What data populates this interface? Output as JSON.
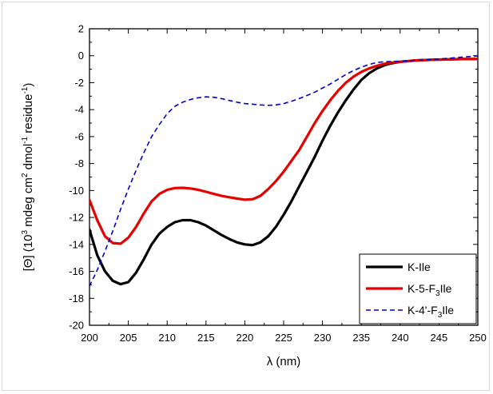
{
  "chart_data": {
    "type": "line",
    "xlabel": "λ (nm)",
    "ylabel_parts": {
      "prefix": "[Θ] (10",
      "exp1": "3",
      "mid": " mdeg cm",
      "exp2": "2",
      "mid2": " dmol",
      "exp3": "-1",
      "mid3": " residue",
      "exp4": "-1",
      "suffix": ")"
    },
    "xlim": [
      200,
      250
    ],
    "ylim": [
      -20,
      2
    ],
    "xticks": [
      200,
      205,
      210,
      215,
      220,
      225,
      230,
      235,
      240,
      245,
      250
    ],
    "yticks": [
      2,
      0,
      -2,
      -4,
      -6,
      -8,
      -10,
      -12,
      -14,
      -16,
      -18,
      -20
    ],
    "grid": false,
    "legend_position": "bottom-right",
    "series": [
      {
        "name": "K-Ile",
        "legend_parts": [
          "K-Ile",
          "",
          ""
        ],
        "color": "#000000",
        "style": "solid",
        "x": [
          200,
          201,
          202,
          203,
          204,
          205,
          206,
          207,
          208,
          209,
          210,
          211,
          212,
          213,
          214,
          215,
          216,
          217,
          218,
          219,
          220,
          221,
          222,
          223,
          224,
          225,
          226,
          227,
          228,
          229,
          230,
          231,
          232,
          233,
          234,
          235,
          236,
          237,
          238,
          239,
          240,
          242,
          244,
          246,
          248,
          250
        ],
        "y": [
          -12.9,
          -14.8,
          -16.0,
          -16.7,
          -16.95,
          -16.8,
          -16.1,
          -15.1,
          -14.0,
          -13.2,
          -12.7,
          -12.35,
          -12.2,
          -12.2,
          -12.35,
          -12.6,
          -12.95,
          -13.3,
          -13.6,
          -13.85,
          -14.0,
          -14.05,
          -13.85,
          -13.4,
          -12.7,
          -11.8,
          -10.8,
          -9.7,
          -8.6,
          -7.5,
          -6.3,
          -5.2,
          -4.2,
          -3.3,
          -2.5,
          -1.8,
          -1.3,
          -0.95,
          -0.7,
          -0.55,
          -0.45,
          -0.35,
          -0.3,
          -0.28,
          -0.25,
          -0.25
        ]
      },
      {
        "name": "K-5-F3Ile",
        "legend_parts": [
          "K-5-F",
          "3",
          "Ile"
        ],
        "color": "#e60000",
        "style": "solid",
        "x": [
          200,
          201,
          202,
          203,
          204,
          205,
          206,
          207,
          208,
          209,
          210,
          211,
          212,
          213,
          214,
          215,
          216,
          217,
          218,
          219,
          220,
          221,
          222,
          223,
          224,
          225,
          226,
          227,
          228,
          229,
          230,
          231,
          232,
          233,
          234,
          235,
          236,
          237,
          238,
          239,
          240,
          242,
          244,
          246,
          248,
          250
        ],
        "y": [
          -10.7,
          -12.2,
          -13.4,
          -13.9,
          -13.95,
          -13.5,
          -12.7,
          -11.7,
          -10.8,
          -10.25,
          -9.95,
          -9.82,
          -9.8,
          -9.85,
          -9.95,
          -10.1,
          -10.25,
          -10.4,
          -10.5,
          -10.6,
          -10.68,
          -10.65,
          -10.4,
          -9.9,
          -9.3,
          -8.6,
          -7.8,
          -7.0,
          -6.0,
          -5.0,
          -4.1,
          -3.3,
          -2.6,
          -2.0,
          -1.55,
          -1.2,
          -0.95,
          -0.75,
          -0.6,
          -0.5,
          -0.45,
          -0.35,
          -0.3,
          -0.27,
          -0.25,
          -0.25
        ]
      },
      {
        "name": "K-4'-F3Ile",
        "legend_parts": [
          "K-4'-F",
          "3",
          "Ile"
        ],
        "color": "#0000cc",
        "style": "dashed",
        "x": [
          200,
          201,
          202,
          203,
          204,
          205,
          206,
          207,
          208,
          209,
          210,
          211,
          212,
          213,
          214,
          215,
          216,
          217,
          218,
          219,
          220,
          221,
          222,
          223,
          224,
          225,
          226,
          227,
          228,
          229,
          230,
          231,
          232,
          233,
          234,
          235,
          236,
          237,
          238,
          239,
          240,
          242,
          244,
          246,
          248,
          250
        ],
        "y": [
          -17.1,
          -15.9,
          -14.5,
          -13.0,
          -11.4,
          -9.9,
          -8.5,
          -7.2,
          -6.0,
          -5.1,
          -4.3,
          -3.75,
          -3.45,
          -3.25,
          -3.12,
          -3.05,
          -3.08,
          -3.18,
          -3.32,
          -3.45,
          -3.55,
          -3.6,
          -3.65,
          -3.68,
          -3.65,
          -3.55,
          -3.38,
          -3.18,
          -2.95,
          -2.7,
          -2.4,
          -2.1,
          -1.75,
          -1.4,
          -1.1,
          -0.85,
          -0.65,
          -0.5,
          -0.45,
          -0.42,
          -0.4,
          -0.35,
          -0.28,
          -0.2,
          -0.1,
          -0.02
        ]
      }
    ]
  }
}
